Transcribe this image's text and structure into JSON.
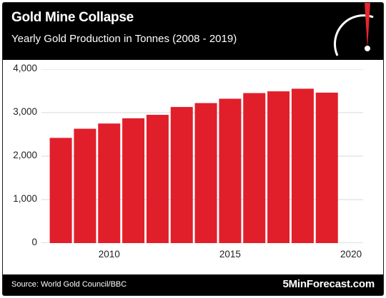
{
  "header": {
    "title": "Gold Mine Collapse",
    "subtitle": "Yearly Gold Production in Tonnes (2008 - 2019)"
  },
  "footer": {
    "source": "Source: World Gold Council/BBC",
    "brand": "5MinForecast.com"
  },
  "logo": {
    "icon": "speedometer-gauge-icon",
    "needle_color": "#e4262d"
  },
  "colors": {
    "bar": "#e01f2b",
    "grid": "#d9d9d9",
    "header_bg": "#000000"
  },
  "chart_data": {
    "type": "bar",
    "title": "Gold Mine Collapse",
    "subtitle": "Yearly Gold Production in Tonnes (2008 - 2019)",
    "xlabel": "",
    "ylabel": "",
    "x": [
      2008,
      2009,
      2010,
      2011,
      2012,
      2013,
      2014,
      2015,
      2016,
      2017,
      2018,
      2019
    ],
    "values": [
      2420,
      2630,
      2750,
      2870,
      2950,
      3130,
      3220,
      3320,
      3450,
      3490,
      3550,
      3460
    ],
    "xlim": [
      2007.2,
      2020.5
    ],
    "ylim": [
      0,
      4000
    ],
    "yticks": [
      0,
      1000,
      2000,
      3000,
      4000
    ],
    "ytick_labels": [
      "0",
      "1,000",
      "2,000",
      "3,000",
      "4,000"
    ],
    "xticks": [
      2010,
      2015,
      2020
    ],
    "xtick_labels": [
      "2010",
      "2015",
      "2020"
    ],
    "grid": true,
    "legend": "none"
  }
}
